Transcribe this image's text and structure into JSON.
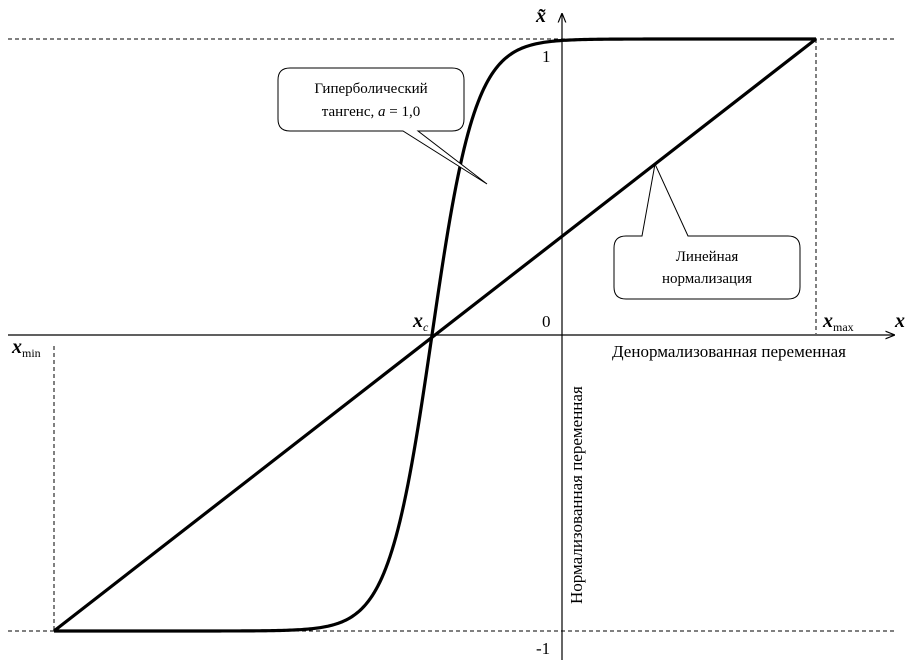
{
  "axes": {
    "x_symbol": "x",
    "y_symbol": "x̃",
    "y_tick_top": "1",
    "y_tick_bottom": "-1",
    "origin_label": "0",
    "x_axis_caption": "Денормализованная переменная",
    "y_axis_caption": "Нормализованная переменная"
  },
  "points": {
    "xc_main": "x",
    "xc_sub": "c",
    "xmin_main": "x",
    "xmin_sub": "min",
    "xmax_main": "x",
    "xmax_sub": "max"
  },
  "callouts": {
    "tanh_line1": "Гиперболический",
    "tanh_line2_prefix": "тангенс, ",
    "tanh_line2_param": "a",
    "tanh_line2_suffix": " = 1,0",
    "linear_line1": "Линейная",
    "linear_line2": "нормализация"
  },
  "chart_data": {
    "type": "line",
    "curves": [
      {
        "function": "tanh",
        "a": 1.0
      },
      {
        "function": "linear"
      }
    ],
    "xlim": [
      "x_min",
      "x_max"
    ],
    "ylim": [
      -1,
      1
    ],
    "grid": false
  }
}
